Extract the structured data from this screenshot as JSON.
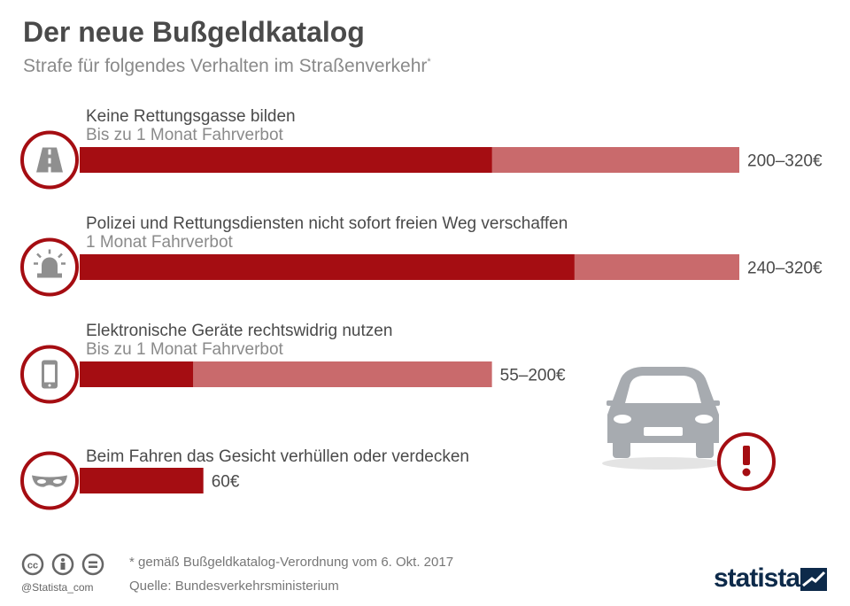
{
  "title": "Der neue Bußgeldkatalog",
  "subtitle": "Strafe für folgendes Verhalten im Straßenverkehr",
  "subtitle_mark": "*",
  "chart_data": {
    "type": "bar",
    "orientation": "horizontal",
    "unit": "€",
    "colors": {
      "min": "#a50d12",
      "range": "#c96a6c",
      "icon_ring": "#a50d12",
      "icon_fill": "#8f8f8f",
      "car": "#a7abb0"
    },
    "items": [
      {
        "label": "Keine Rettungsgasse bilden",
        "sublabel": "Bis zu 1 Monat Fahrverbot",
        "min": 200,
        "max": 320,
        "value_label": "200–320€",
        "icon": "road-icon"
      },
      {
        "label": "Polizei und Rettungsdiensten nicht sofort freien Weg verschaffen",
        "sublabel": "1 Monat Fahrverbot",
        "min": 240,
        "max": 320,
        "value_label": "240–320€",
        "icon": "siren-icon"
      },
      {
        "label": "Elektronische Geräte rechtswidrig nutzen",
        "sublabel": "Bis zu 1 Monat Fahrverbot",
        "min": 55,
        "max": 200,
        "value_label": "55–200€",
        "icon": "phone-icon"
      },
      {
        "label": "Beim Fahren das Gesicht verhüllen oder verdecken",
        "sublabel": "",
        "min": 60,
        "max": 60,
        "value_label": "60€",
        "icon": "mask-icon"
      }
    ]
  },
  "footer": {
    "note": "* gemäß Bußgeldkatalog-Verordnung vom 6. Okt. 2017",
    "source": "Quelle: Bundesverkehrsministerium",
    "handle": "@Statista_com",
    "brand": "statista"
  }
}
